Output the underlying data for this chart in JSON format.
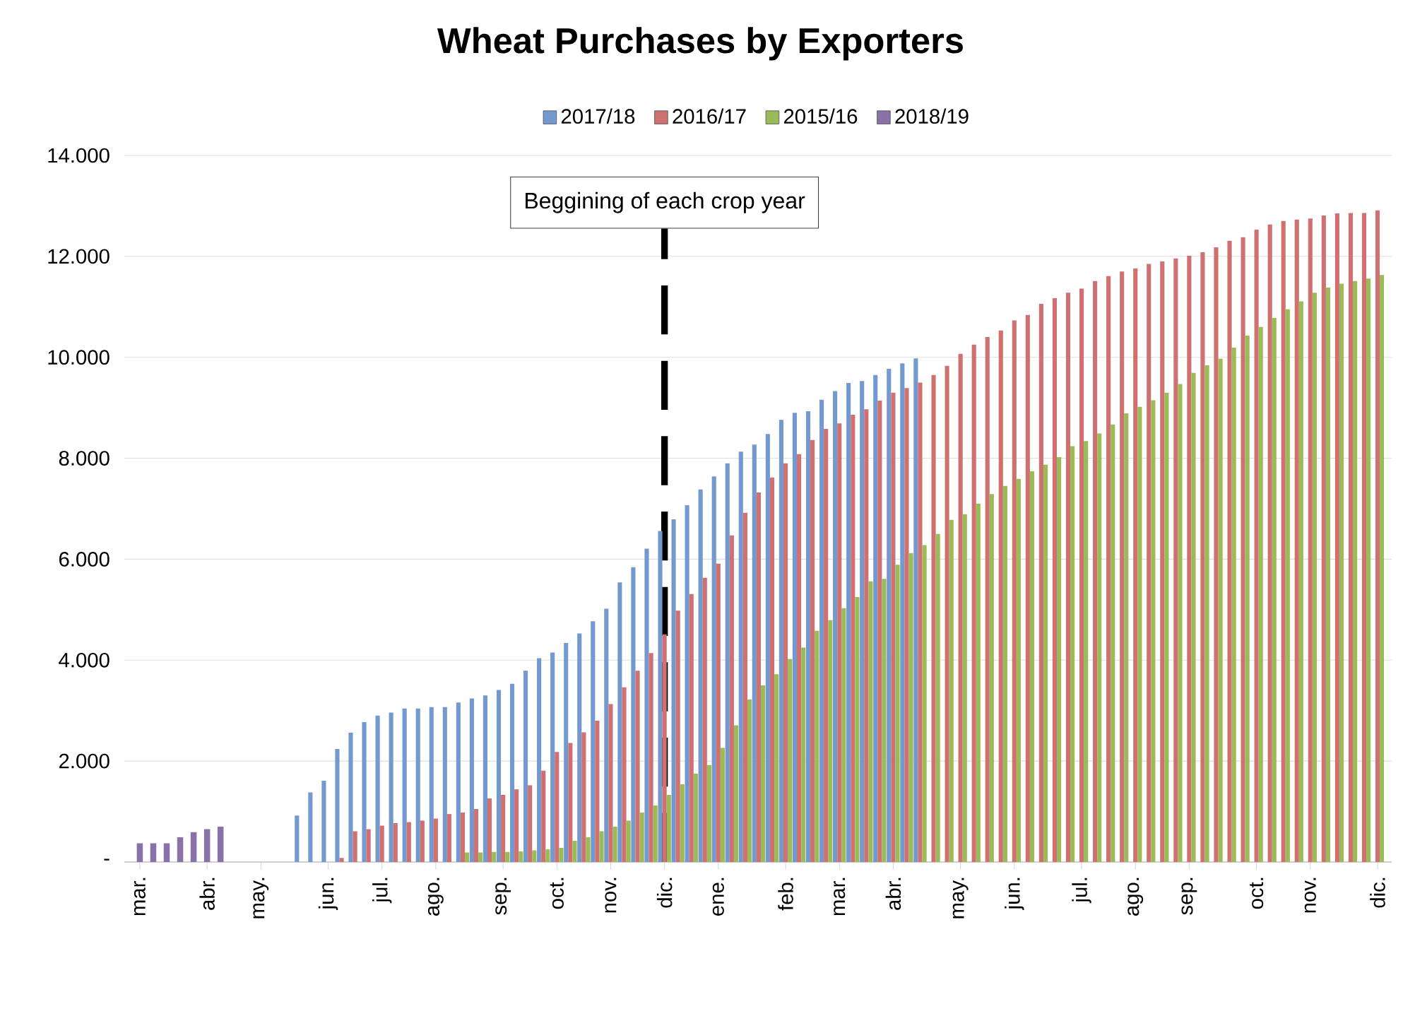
{
  "chart_data": {
    "type": "bar",
    "title": "Wheat Purchases by Exporters",
    "categories": [
      "mar.",
      null,
      null,
      null,
      null,
      "abr.",
      null,
      null,
      null,
      "may.",
      null,
      null,
      null,
      null,
      "jun.",
      null,
      null,
      null,
      "jul.",
      null,
      null,
      null,
      "ago.",
      null,
      null,
      null,
      null,
      "sep.",
      null,
      null,
      null,
      "oct.",
      null,
      null,
      null,
      "nov.",
      null,
      null,
      null,
      "dic.",
      null,
      null,
      null,
      "ene.",
      null,
      null,
      null,
      null,
      "feb.",
      null,
      null,
      null,
      "mar.",
      null,
      null,
      null,
      "abr.",
      null,
      null,
      null,
      null,
      "may.",
      null,
      null,
      null,
      "jun.",
      null,
      null,
      null,
      null,
      "jul.",
      null,
      null,
      null,
      "ago.",
      null,
      null,
      null,
      "sep.",
      null,
      null,
      null,
      null,
      "oct.",
      null,
      null,
      null,
      "nov.",
      null,
      null,
      null,
      null,
      "dic."
    ],
    "series": [
      {
        "name": "2017/18",
        "color": "#7399cf",
        "values": [
          null,
          null,
          null,
          null,
          null,
          null,
          null,
          null,
          null,
          null,
          null,
          null,
          920,
          1380,
          1610,
          2240,
          2560,
          2770,
          2900,
          2960,
          3040,
          3040,
          3070,
          3070,
          3160,
          3240,
          3300,
          3410,
          3530,
          3790,
          4040,
          4150,
          4340,
          4530,
          4770,
          5020,
          5540,
          5840,
          6210,
          6560,
          6790,
          7070,
          7380,
          7640,
          7900,
          8130,
          8270,
          8480,
          8760,
          8900,
          8930,
          9160,
          9330,
          9490,
          9530,
          9650,
          9770,
          9880,
          9980,
          null,
          null,
          null,
          null,
          null,
          null,
          null,
          null,
          null,
          null,
          null,
          null,
          null,
          null,
          null,
          null,
          null,
          null,
          null,
          null,
          null,
          null,
          null,
          null,
          null,
          null,
          null,
          null,
          null,
          null,
          null,
          null,
          null,
          null
        ]
      },
      {
        "name": "2016/17",
        "color": "#cf7170",
        "values": [
          null,
          null,
          null,
          null,
          null,
          null,
          null,
          null,
          null,
          null,
          null,
          null,
          null,
          null,
          null,
          80,
          610,
          650,
          720,
          770,
          790,
          820,
          860,
          950,
          980,
          1050,
          1260,
          1330,
          1440,
          1520,
          1810,
          2180,
          2360,
          2570,
          2800,
          3130,
          3460,
          3790,
          4140,
          4510,
          4980,
          5310,
          5630,
          5910,
          6470,
          6920,
          7320,
          7620,
          7900,
          8080,
          8360,
          8580,
          8690,
          8860,
          8970,
          9140,
          9300,
          9390,
          9500,
          9650,
          9830,
          10070,
          10250,
          10400,
          10530,
          10730,
          10840,
          11060,
          11170,
          11280,
          11360,
          11510,
          11610,
          11700,
          11760,
          11850,
          11900,
          11960,
          12010,
          12080,
          12180,
          12310,
          12380,
          12530,
          12630,
          12700,
          12730,
          12750,
          12810,
          12850,
          12860,
          12860,
          12910
        ]
      },
      {
        "name": "2015/16",
        "color": "#9bbb59",
        "values": [
          null,
          null,
          null,
          null,
          null,
          null,
          null,
          null,
          null,
          null,
          null,
          null,
          null,
          null,
          null,
          null,
          null,
          null,
          null,
          null,
          null,
          null,
          null,
          null,
          190,
          190,
          200,
          200,
          210,
          230,
          250,
          280,
          420,
          490,
          610,
          700,
          820,
          980,
          1120,
          1330,
          1540,
          1750,
          1920,
          2260,
          2710,
          3220,
          3500,
          3720,
          4020,
          4250,
          4580,
          4790,
          5030,
          5250,
          5560,
          5610,
          5890,
          6120,
          6280,
          6500,
          6780,
          6890,
          7100,
          7290,
          7450,
          7590,
          7740,
          7870,
          8020,
          8240,
          8340,
          8490,
          8670,
          8890,
          9020,
          9150,
          9300,
          9470,
          9690,
          9840,
          9970,
          10190,
          10430,
          10600,
          10780,
          10950,
          11110,
          11280,
          11380,
          11460,
          11510,
          11560,
          11630
        ]
      },
      {
        "name": "2018/19",
        "color": "#8a72a8",
        "values": [
          370,
          370,
          370,
          490,
          590,
          650,
          700,
          null,
          null,
          null,
          null,
          null,
          null,
          null,
          null,
          null,
          null,
          null,
          null,
          null,
          null,
          null,
          null,
          null,
          null,
          null,
          null,
          null,
          null,
          null,
          null,
          null,
          null,
          null,
          null,
          null,
          null,
          null,
          null,
          null,
          null,
          null,
          null,
          null,
          null,
          null,
          null,
          null,
          null,
          null,
          null,
          null,
          null,
          null,
          null,
          null,
          null,
          null,
          null,
          null,
          null,
          null,
          null,
          null,
          null,
          null,
          null,
          null,
          null,
          null,
          null,
          null,
          null,
          null,
          null,
          null,
          null,
          null,
          null,
          null,
          null,
          null,
          null,
          null,
          null,
          null,
          null,
          null,
          null,
          null,
          null,
          null,
          null
        ]
      }
    ],
    "ylim": [
      0,
      14000
    ],
    "yticks": [
      {
        "value": 0,
        "label": "-"
      },
      {
        "value": 2000,
        "label": "2.000"
      },
      {
        "value": 4000,
        "label": "4.000"
      },
      {
        "value": 6000,
        "label": "6.000"
      },
      {
        "value": 8000,
        "label": "8.000"
      },
      {
        "value": 10000,
        "label": "10.000"
      },
      {
        "value": 12000,
        "label": "12.000"
      },
      {
        "value": 14000,
        "label": "14.000"
      }
    ],
    "grid": "y",
    "legend": "top",
    "ref_lines": [
      {
        "axis": "x",
        "value": "dic.",
        "label": "Beggining of each crop year",
        "color": "#000000",
        "line_style": "dashed"
      }
    ]
  }
}
